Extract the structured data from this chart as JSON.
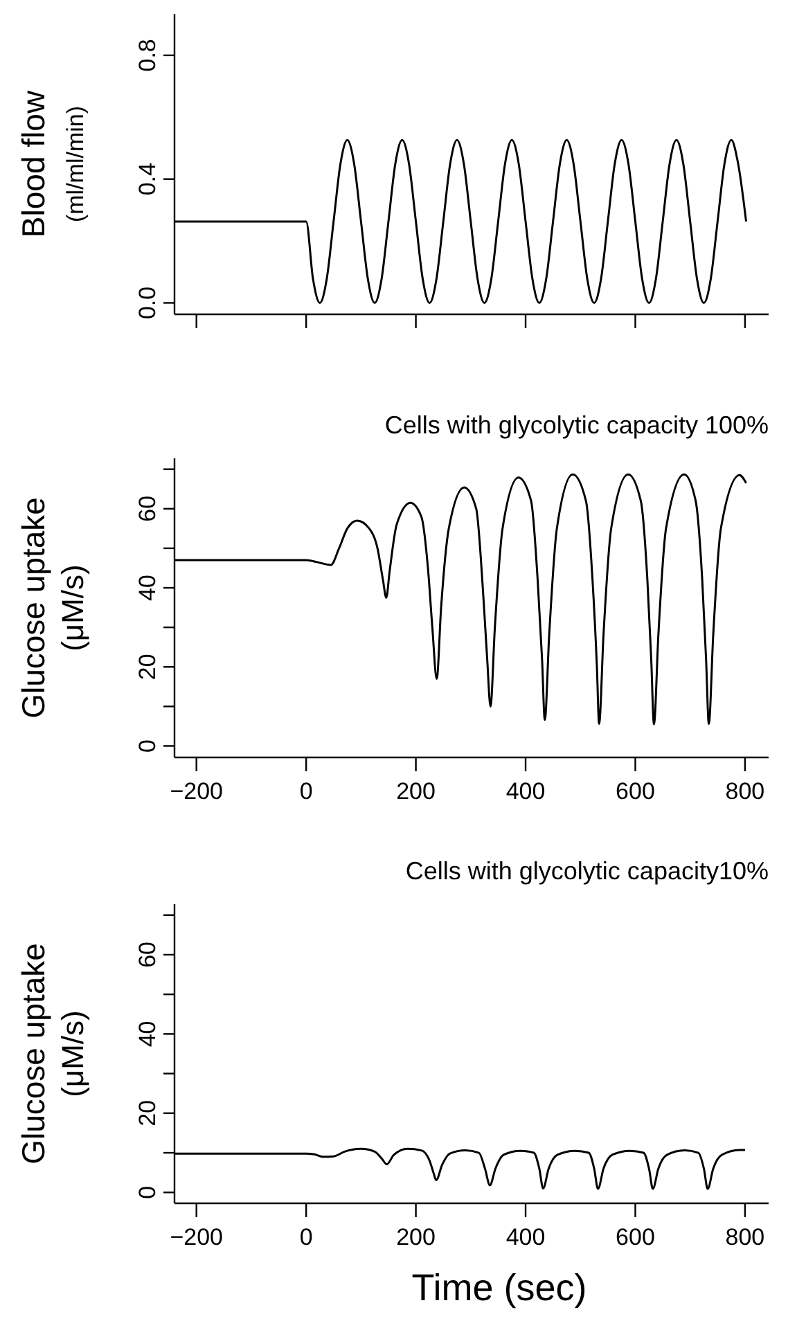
{
  "chart_data": [
    {
      "type": "line",
      "ylabel": "Blood flow\n(ml/ml/min)",
      "xlim": [
        -240,
        843
      ],
      "ylim": [
        -0.037,
        0.934
      ],
      "xticks": [
        {
          "value": -200,
          "label": null
        },
        {
          "value": 0,
          "label": null
        },
        {
          "value": 200,
          "label": null
        },
        {
          "value": 400,
          "label": null
        },
        {
          "value": 600,
          "label": null
        },
        {
          "value": 800,
          "label": null
        }
      ],
      "yticks": [
        {
          "value": 0,
          "label": "0.0"
        },
        0.4,
        0.8
      ],
      "tick_labels": "y",
      "grid": false,
      "marker": "none",
      "line_style": "solid",
      "series": [
        {
          "color": "#000000",
          "x": [
            -240,
            0,
            12.5,
            25,
            37.5,
            50,
            62.5,
            75,
            87.5,
            100,
            112.5,
            125,
            137.5,
            150,
            162.5,
            175,
            187.5,
            200,
            212.5,
            225,
            237.5,
            250,
            262.5,
            275,
            287.5,
            300,
            312.5,
            325,
            337.5,
            350,
            362.5,
            375,
            387.5,
            400,
            412.5,
            425,
            437.5,
            450,
            462.5,
            475,
            487.5,
            500,
            512.5,
            525,
            537.5,
            550,
            562.5,
            575,
            587.5,
            600,
            612.5,
            625,
            637.5,
            650,
            662.5,
            675,
            687.5,
            700,
            712.5,
            725,
            737.5,
            750,
            762.5,
            775,
            787.5,
            802
          ],
          "values": [
            0.263,
            0.263,
            0.077,
            0,
            0.077,
            0.263,
            0.449,
            0.526,
            0.449,
            0.263,
            0.077,
            0,
            0.077,
            0.263,
            0.449,
            0.526,
            0.449,
            0.263,
            0.077,
            0,
            0.077,
            0.263,
            0.449,
            0.526,
            0.449,
            0.263,
            0.077,
            0,
            0.077,
            0.263,
            0.449,
            0.526,
            0.449,
            0.263,
            0.077,
            0,
            0.077,
            0.263,
            0.449,
            0.526,
            0.449,
            0.263,
            0.077,
            0,
            0.077,
            0.263,
            0.449,
            0.526,
            0.449,
            0.263,
            0.077,
            0,
            0.077,
            0.263,
            0.449,
            0.526,
            0.449,
            0.263,
            0.077,
            0,
            0.077,
            0.263,
            0.449,
            0.526,
            0.449,
            0.263
          ]
        }
      ]
    },
    {
      "type": "line",
      "title": "Cells with glycolytic capacity 100%",
      "ylabel": "Glucose uptake\n(μM/s)",
      "xlim": [
        -240,
        843
      ],
      "ylim": [
        -2.9,
        72.75
      ],
      "xticks": [
        -200,
        0,
        200,
        400,
        600,
        800
      ],
      "yticks": [
        0,
        {
          "value": 10,
          "label": null
        },
        20,
        {
          "value": 30,
          "label": null
        },
        40,
        {
          "value": 50,
          "label": null
        },
        60,
        {
          "value": 70,
          "label": null
        }
      ],
      "grid": false,
      "marker": "none",
      "line_style": "solid",
      "series": [
        {
          "color": "#000000",
          "x": [
            -240,
            0,
            20,
            45,
            60,
            75,
            93,
            115,
            130,
            140,
            146,
            152,
            165,
            190,
            210,
            222,
            230,
            238,
            246,
            260,
            288,
            310,
            322,
            330,
            336,
            344,
            358,
            387,
            410,
            422,
            430,
            435,
            443,
            457,
            486,
            510,
            522,
            530,
            534,
            542,
            556,
            587,
            610,
            622,
            629,
            634,
            642,
            656,
            689,
            710,
            722,
            729,
            734,
            742,
            756,
            790,
            802
          ],
          "values": [
            47,
            47,
            46.5,
            45.8,
            50,
            55,
            57,
            55,
            50,
            42,
            37.5,
            44,
            56,
            61.5,
            58,
            45,
            30,
            17,
            35,
            55,
            65.4,
            60,
            40,
            22,
            10,
            30,
            55,
            67.9,
            62,
            42,
            22,
            6.6,
            28,
            55,
            68.7,
            62,
            42,
            20,
            5.6,
            28,
            55,
            68.7,
            62,
            42,
            22,
            5.5,
            28,
            55,
            68.7,
            62,
            42,
            22,
            5.6,
            28,
            55,
            68.5,
            66.5
          ]
        }
      ]
    },
    {
      "type": "line",
      "title": "Cells with glycolytic capacity10%",
      "xlabel": "Time (sec)",
      "ylabel": "Glucose uptake\n(μM/s)",
      "xlim": [
        -240,
        843
      ],
      "ylim": [
        -2.75,
        72.75
      ],
      "xticks": [
        -200,
        0,
        200,
        400,
        600,
        800
      ],
      "yticks": [
        0,
        {
          "value": 10,
          "label": null
        },
        20,
        {
          "value": 30,
          "label": null
        },
        40,
        {
          "value": 50,
          "label": null
        },
        60,
        {
          "value": 70,
          "label": null
        }
      ],
      "grid": false,
      "marker": "none",
      "line_style": "solid",
      "series": [
        {
          "color": "#000000",
          "x": [
            -240,
            0,
            15,
            30,
            50,
            70,
            100,
            125,
            138,
            147,
            160,
            185,
            210,
            225,
            232,
            237,
            248,
            262,
            290,
            315,
            326,
            335,
            345,
            360,
            390,
            415,
            425,
            432,
            442,
            458,
            490,
            515,
            525,
            532,
            542,
            558,
            590,
            615,
            625,
            632,
            642,
            658,
            690,
            715,
            725,
            732,
            742,
            758,
            790,
            800
          ],
          "values": [
            9.8,
            9.8,
            9.6,
            9,
            9.1,
            10.3,
            11,
            10.3,
            8.5,
            7.1,
            9.5,
            11,
            10.6,
            8,
            5,
            3.1,
            7,
            9.8,
            10.6,
            10,
            6,
            1.8,
            6,
            9.5,
            10.5,
            10,
            6,
            1,
            6,
            9.5,
            10.5,
            10,
            6,
            0.9,
            6,
            9.5,
            10.5,
            10,
            6,
            0.9,
            6,
            9.5,
            10.6,
            10,
            6,
            0.9,
            6,
            9.5,
            10.7,
            10.7
          ]
        }
      ]
    }
  ]
}
